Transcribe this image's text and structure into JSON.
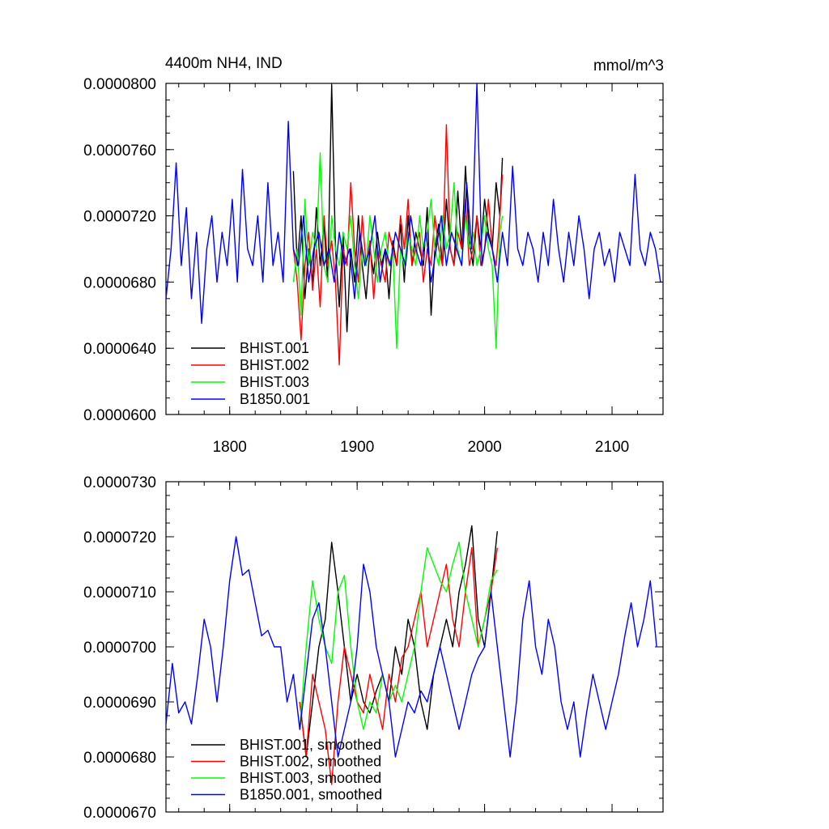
{
  "chart_data": [
    {
      "type": "line",
      "title": "4400m NH4, IND",
      "units": "mmol/m^3",
      "xlim": [
        1750,
        2140
      ],
      "ylim": [
        6e-05,
        8e-05
      ],
      "x_ticks": [
        1800,
        1900,
        2000,
        2100
      ],
      "x_tick_labels": [
        "1800",
        "1900",
        "2000",
        "2100"
      ],
      "y_ticks": [
        6e-05,
        6.4e-05,
        6.8e-05,
        7.2e-05,
        7.6e-05,
        8e-05
      ],
      "y_tick_labels": [
        "0.0000600",
        "0.0000640",
        "0.0000680",
        "0.0000720",
        "0.0000760",
        "0.0000800"
      ],
      "grid": false,
      "legend_position": "bottom-left",
      "series": [
        {
          "name": "BHIST.001",
          "color": "#000000",
          "x": [
            1850,
            1853,
            1856,
            1859,
            1862,
            1865,
            1868,
            1871,
            1874,
            1877,
            1880,
            1883,
            1886,
            1889,
            1892,
            1895,
            1898,
            1901,
            1904,
            1907,
            1910,
            1913,
            1916,
            1919,
            1922,
            1925,
            1928,
            1931,
            1934,
            1937,
            1940,
            1943,
            1946,
            1949,
            1952,
            1955,
            1958,
            1961,
            1964,
            1967,
            1970,
            1973,
            1976,
            1979,
            1982,
            1985,
            1988,
            1991,
            1994,
            1997,
            2000,
            2003,
            2006,
            2009,
            2012,
            2014
          ],
          "y": [
            7.47e-05,
            6.9e-05,
            7.2e-05,
            6.7e-05,
            7e-05,
            6.8e-05,
            7.25e-05,
            6.9e-05,
            7.15e-05,
            6.8e-05,
            7.99e-05,
            7e-05,
            6.65e-05,
            7.1e-05,
            6.5e-05,
            7e-05,
            6.8e-05,
            7.2e-05,
            6.9e-05,
            6.7e-05,
            7e-05,
            6.85e-05,
            7.1e-05,
            6.9e-05,
            7e-05,
            6.7e-05,
            7.05e-05,
            6.9e-05,
            7.15e-05,
            6.8e-05,
            7.2e-05,
            6.9e-05,
            7.1e-05,
            7e-05,
            6.9e-05,
            7.25e-05,
            6.6e-05,
            7e-05,
            7.15e-05,
            6.9e-05,
            7.3e-05,
            7e-05,
            6.9e-05,
            7.35e-05,
            7e-05,
            7.5e-05,
            7.05e-05,
            6.9e-05,
            7.2e-05,
            7e-05,
            7.3e-05,
            7.1e-05,
            7e-05,
            7.4e-05,
            7.2e-05,
            7.55e-05
          ]
        },
        {
          "name": "BHIST.002",
          "color": "#ff0000",
          "x": [
            1850,
            1853,
            1856,
            1859,
            1862,
            1865,
            1868,
            1871,
            1874,
            1877,
            1880,
            1883,
            1886,
            1889,
            1892,
            1895,
            1898,
            1901,
            1904,
            1907,
            1910,
            1913,
            1916,
            1919,
            1922,
            1925,
            1928,
            1931,
            1934,
            1937,
            1940,
            1943,
            1946,
            1949,
            1952,
            1955,
            1958,
            1961,
            1964,
            1967,
            1970,
            1973,
            1976,
            1979,
            1982,
            1985,
            1988,
            1991,
            1994,
            1997,
            2000,
            2003,
            2006,
            2009,
            2012,
            2014
          ],
          "y": [
            7e-05,
            6.8e-05,
            6.45e-05,
            6.9e-05,
            7.1e-05,
            6.75e-05,
            7e-05,
            6.65e-05,
            7.2e-05,
            6.9e-05,
            7.05e-05,
            6.8e-05,
            6.3e-05,
            7e-05,
            6.9e-05,
            7.4e-05,
            7e-05,
            6.8e-05,
            7.2e-05,
            6.9e-05,
            7.05e-05,
            6.7e-05,
            7e-05,
            6.9e-05,
            6.8e-05,
            7.1e-05,
            7e-05,
            6.9e-05,
            7.2e-05,
            7e-05,
            7.3e-05,
            6.9e-05,
            7e-05,
            7.1e-05,
            6.8e-05,
            7e-05,
            6.9e-05,
            7.2e-05,
            7e-05,
            6.9e-05,
            7.75e-05,
            7e-05,
            6.9e-05,
            7.1e-05,
            7e-05,
            7.3e-05,
            6.9e-05,
            7e-05,
            7.2e-05,
            6.9e-05,
            7e-05,
            7.3e-05,
            7e-05,
            6.9e-05,
            7.2e-05,
            7.45e-05
          ]
        },
        {
          "name": "BHIST.003",
          "color": "#00ff00",
          "x": [
            1850,
            1853,
            1856,
            1859,
            1862,
            1865,
            1868,
            1871,
            1874,
            1877,
            1880,
            1883,
            1886,
            1889,
            1892,
            1895,
            1898,
            1901,
            1904,
            1907,
            1910,
            1913,
            1916,
            1919,
            1922,
            1925,
            1928,
            1931,
            1934,
            1937,
            1940,
            1943,
            1946,
            1949,
            1952,
            1955,
            1958,
            1961,
            1964,
            1967,
            1970,
            1973,
            1976,
            1979,
            1982,
            1985,
            1988,
            1991,
            1994,
            1997,
            2000,
            2003,
            2006,
            2009,
            2012,
            2014
          ],
          "y": [
            6.8e-05,
            7e-05,
            6.6e-05,
            7.3e-05,
            6.9e-05,
            7.1e-05,
            7e-05,
            7.58e-05,
            6.9e-05,
            6.8e-05,
            7.2e-05,
            7e-05,
            6.9e-05,
            7.1e-05,
            7e-05,
            7.2e-05,
            6.9e-05,
            6.7e-05,
            7e-05,
            6.9e-05,
            7.2e-05,
            7e-05,
            6.8e-05,
            7e-05,
            7.1e-05,
            6.9e-05,
            7e-05,
            6.4e-05,
            7e-05,
            6.9e-05,
            7.1e-05,
            7e-05,
            6.9e-05,
            7.2e-05,
            7e-05,
            7.1e-05,
            7.3e-05,
            7e-05,
            6.9e-05,
            7.2e-05,
            7e-05,
            7.1e-05,
            7.4e-05,
            7e-05,
            6.9e-05,
            7.2e-05,
            7e-05,
            7.1e-05,
            6.9e-05,
            7e-05,
            7.2e-05,
            7e-05,
            6.9e-05,
            6.4e-05,
            7.1e-05,
            7.2e-05
          ]
        },
        {
          "name": "B1850.001",
          "color": "#0000ff",
          "x": [
            1750,
            1754,
            1758,
            1762,
            1766,
            1770,
            1774,
            1778,
            1782,
            1786,
            1790,
            1794,
            1798,
            1802,
            1806,
            1810,
            1814,
            1818,
            1822,
            1826,
            1830,
            1834,
            1838,
            1842,
            1846,
            1850,
            1854,
            1858,
            1862,
            1866,
            1870,
            1874,
            1878,
            1882,
            1886,
            1890,
            1894,
            1898,
            1902,
            1906,
            1910,
            1914,
            1918,
            1922,
            1926,
            1930,
            1934,
            1938,
            1942,
            1946,
            1950,
            1954,
            1958,
            1962,
            1966,
            1970,
            1974,
            1978,
            1982,
            1986,
            1990,
            1994,
            1998,
            2002,
            2006,
            2010,
            2014,
            2018,
            2022,
            2026,
            2030,
            2034,
            2038,
            2042,
            2046,
            2050,
            2054,
            2058,
            2062,
            2066,
            2070,
            2074,
            2078,
            2082,
            2086,
            2090,
            2094,
            2098,
            2102,
            2106,
            2110,
            2114,
            2118,
            2122,
            2126,
            2130,
            2134,
            2138
          ],
          "y": [
            6.7e-05,
            7e-05,
            7.52e-05,
            6.9e-05,
            7.25e-05,
            6.7e-05,
            7.1e-05,
            6.55e-05,
            7e-05,
            7.2e-05,
            6.8e-05,
            7.1e-05,
            6.9e-05,
            7.3e-05,
            6.8e-05,
            7.48e-05,
            7e-05,
            6.9e-05,
            7.2e-05,
            6.8e-05,
            7.4e-05,
            6.9e-05,
            7.1e-05,
            6.8e-05,
            7.77e-05,
            7e-05,
            6.9e-05,
            7.2e-05,
            6.8e-05,
            7e-05,
            7.1e-05,
            6.9e-05,
            7e-05,
            6.8e-05,
            7.1e-05,
            6.9e-05,
            7e-05,
            6.7e-05,
            7.1e-05,
            6.9e-05,
            7e-05,
            7.2e-05,
            6.8e-05,
            7e-05,
            6.9e-05,
            7.1e-05,
            7e-05,
            6.9e-05,
            7.2e-05,
            7e-05,
            6.9e-05,
            7.1e-05,
            6.8e-05,
            7e-05,
            7.2e-05,
            6.9e-05,
            7.1e-05,
            7e-05,
            6.9e-05,
            7.4e-05,
            7e-05,
            8e-05,
            6.9e-05,
            7.1e-05,
            7e-05,
            6.8e-05,
            7.1e-05,
            6.9e-05,
            7.5e-05,
            7e-05,
            6.9e-05,
            7.1e-05,
            7e-05,
            6.8e-05,
            7.1e-05,
            6.9e-05,
            7.3e-05,
            7e-05,
            6.8e-05,
            7.1e-05,
            6.9e-05,
            7.2e-05,
            7e-05,
            6.7e-05,
            7e-05,
            7.1e-05,
            6.9e-05,
            7e-05,
            6.8e-05,
            7.1e-05,
            7e-05,
            6.9e-05,
            7.45e-05,
            7e-05,
            6.9e-05,
            7.1e-05,
            7e-05,
            6.8e-05
          ]
        }
      ],
      "legend": [
        "BHIST.001",
        "BHIST.002",
        "BHIST.003",
        "B1850.001"
      ]
    },
    {
      "type": "line",
      "xlim": [
        1750,
        2140
      ],
      "ylim": [
        6.7e-05,
        7.3e-05
      ],
      "x_ticks": [
        1800,
        1900,
        2000,
        2100
      ],
      "y_ticks": [
        6.7e-05,
        6.8e-05,
        6.9e-05,
        7e-05,
        7.1e-05,
        7.2e-05,
        7.3e-05
      ],
      "y_tick_labels": [
        "0.0000670",
        "0.0000680",
        "0.0000690",
        "0.0000700",
        "0.0000710",
        "0.0000720",
        "0.0000730"
      ],
      "grid": false,
      "legend_position": "bottom-left",
      "series": [
        {
          "name": "BHIST.001, smoothed",
          "color": "#000000",
          "x": [
            1855,
            1860,
            1865,
            1870,
            1875,
            1880,
            1885,
            1890,
            1895,
            1900,
            1905,
            1910,
            1915,
            1920,
            1925,
            1930,
            1935,
            1940,
            1945,
            1950,
            1955,
            1960,
            1965,
            1970,
            1975,
            1980,
            1985,
            1990,
            1995,
            2000,
            2005,
            2010
          ],
          "y": [
            6.9e-05,
            6.8e-05,
            6.9e-05,
            7e-05,
            7.05e-05,
            7.19e-05,
            7.1e-05,
            7e-05,
            6.9e-05,
            6.95e-05,
            6.9e-05,
            6.88e-05,
            6.92e-05,
            6.95e-05,
            6.9e-05,
            7e-05,
            6.95e-05,
            7.05e-05,
            7e-05,
            6.9e-05,
            6.85e-05,
            6.95e-05,
            7e-05,
            7.05e-05,
            7e-05,
            7.1e-05,
            7.15e-05,
            7.22e-05,
            7.05e-05,
            7e-05,
            7.1e-05,
            7.21e-05
          ]
        },
        {
          "name": "BHIST.002, smoothed",
          "color": "#ff0000",
          "x": [
            1855,
            1860,
            1865,
            1870,
            1875,
            1880,
            1885,
            1890,
            1895,
            1900,
            1905,
            1910,
            1915,
            1920,
            1925,
            1930,
            1935,
            1940,
            1945,
            1950,
            1955,
            1960,
            1965,
            1970,
            1975,
            1980,
            1985,
            1990,
            1995,
            2000,
            2005,
            2010
          ],
          "y": [
            6.9e-05,
            6.8e-05,
            6.95e-05,
            6.9e-05,
            6.85e-05,
            6.75e-05,
            6.9e-05,
            7e-05,
            6.95e-05,
            6.9e-05,
            6.88e-05,
            6.95e-05,
            6.9e-05,
            6.85e-05,
            6.95e-05,
            6.9e-05,
            6.98e-05,
            7e-05,
            7.05e-05,
            7.1e-05,
            7e-05,
            7.05e-05,
            7.1e-05,
            7.15e-05,
            7.05e-05,
            7e-05,
            7.1e-05,
            7.18e-05,
            7e-05,
            7.05e-05,
            7.1e-05,
            7.18e-05
          ]
        },
        {
          "name": "BHIST.003, smoothed",
          "color": "#00ff00",
          "x": [
            1855,
            1860,
            1865,
            1870,
            1875,
            1880,
            1885,
            1890,
            1895,
            1900,
            1905,
            1910,
            1915,
            1920,
            1925,
            1930,
            1935,
            1940,
            1945,
            1950,
            1955,
            1960,
            1965,
            1970,
            1975,
            1980,
            1985,
            1990,
            1995,
            2000,
            2005,
            2010
          ],
          "y": [
            6.85e-05,
            7e-05,
            7.12e-05,
            7.05e-05,
            7e-05,
            6.97e-05,
            7.1e-05,
            7.13e-05,
            7e-05,
            6.9e-05,
            6.85e-05,
            6.9e-05,
            6.88e-05,
            6.95e-05,
            6.9e-05,
            6.93e-05,
            6.9e-05,
            6.95e-05,
            7e-05,
            7.1e-05,
            7.18e-05,
            7.15e-05,
            7.12e-05,
            7.1e-05,
            7.15e-05,
            7.19e-05,
            7.1e-05,
            7.05e-05,
            7e-05,
            7.05e-05,
            7.12e-05,
            7.14e-05
          ]
        },
        {
          "name": "B1850.001, smoothed",
          "color": "#0000ff",
          "x": [
            1750,
            1755,
            1760,
            1765,
            1770,
            1775,
            1780,
            1785,
            1790,
            1795,
            1800,
            1805,
            1810,
            1815,
            1820,
            1825,
            1830,
            1835,
            1840,
            1845,
            1850,
            1855,
            1860,
            1865,
            1870,
            1875,
            1880,
            1885,
            1890,
            1895,
            1900,
            1905,
            1910,
            1915,
            1920,
            1925,
            1930,
            1935,
            1940,
            1945,
            1950,
            1955,
            1960,
            1965,
            1970,
            1975,
            1980,
            1985,
            1990,
            1995,
            2000,
            2005,
            2010,
            2015,
            2020,
            2025,
            2030,
            2035,
            2040,
            2045,
            2050,
            2055,
            2060,
            2065,
            2070,
            2075,
            2080,
            2085,
            2090,
            2095,
            2100,
            2105,
            2110,
            2115,
            2120,
            2125,
            2130,
            2135
          ],
          "y": [
            6.86e-05,
            6.97e-05,
            6.88e-05,
            6.9e-05,
            6.86e-05,
            6.95e-05,
            7.05e-05,
            7e-05,
            6.9e-05,
            7e-05,
            7.12e-05,
            7.2e-05,
            7.13e-05,
            7.14e-05,
            7.08e-05,
            7.02e-05,
            7.03e-05,
            7e-05,
            7e-05,
            6.9e-05,
            6.95e-05,
            6.85e-05,
            6.95e-05,
            7.05e-05,
            7.08e-05,
            7e-05,
            6.9e-05,
            6.8e-05,
            6.85e-05,
            6.9e-05,
            7e-05,
            7.15e-05,
            7.1e-05,
            7e-05,
            6.95e-05,
            6.9e-05,
            6.8e-05,
            6.85e-05,
            6.9e-05,
            6.88e-05,
            6.92e-05,
            6.9e-05,
            6.95e-05,
            7e-05,
            6.95e-05,
            6.9e-05,
            6.85e-05,
            6.9e-05,
            6.95e-05,
            6.98e-05,
            7e-05,
            7.1e-05,
            7e-05,
            6.9e-05,
            6.8e-05,
            6.9e-05,
            7.05e-05,
            7.12e-05,
            7e-05,
            6.95e-05,
            7.05e-05,
            7e-05,
            6.9e-05,
            6.85e-05,
            6.9e-05,
            6.8e-05,
            6.88e-05,
            6.95e-05,
            6.9e-05,
            6.85e-05,
            6.9e-05,
            6.95e-05,
            7.02e-05,
            7.08e-05,
            7e-05,
            7.05e-05,
            7.12e-05,
            7e-05
          ]
        }
      ],
      "legend": [
        "BHIST.001, smoothed",
        "BHIST.002, smoothed",
        "BHIST.003, smoothed",
        "B1850.001, smoothed"
      ]
    }
  ]
}
